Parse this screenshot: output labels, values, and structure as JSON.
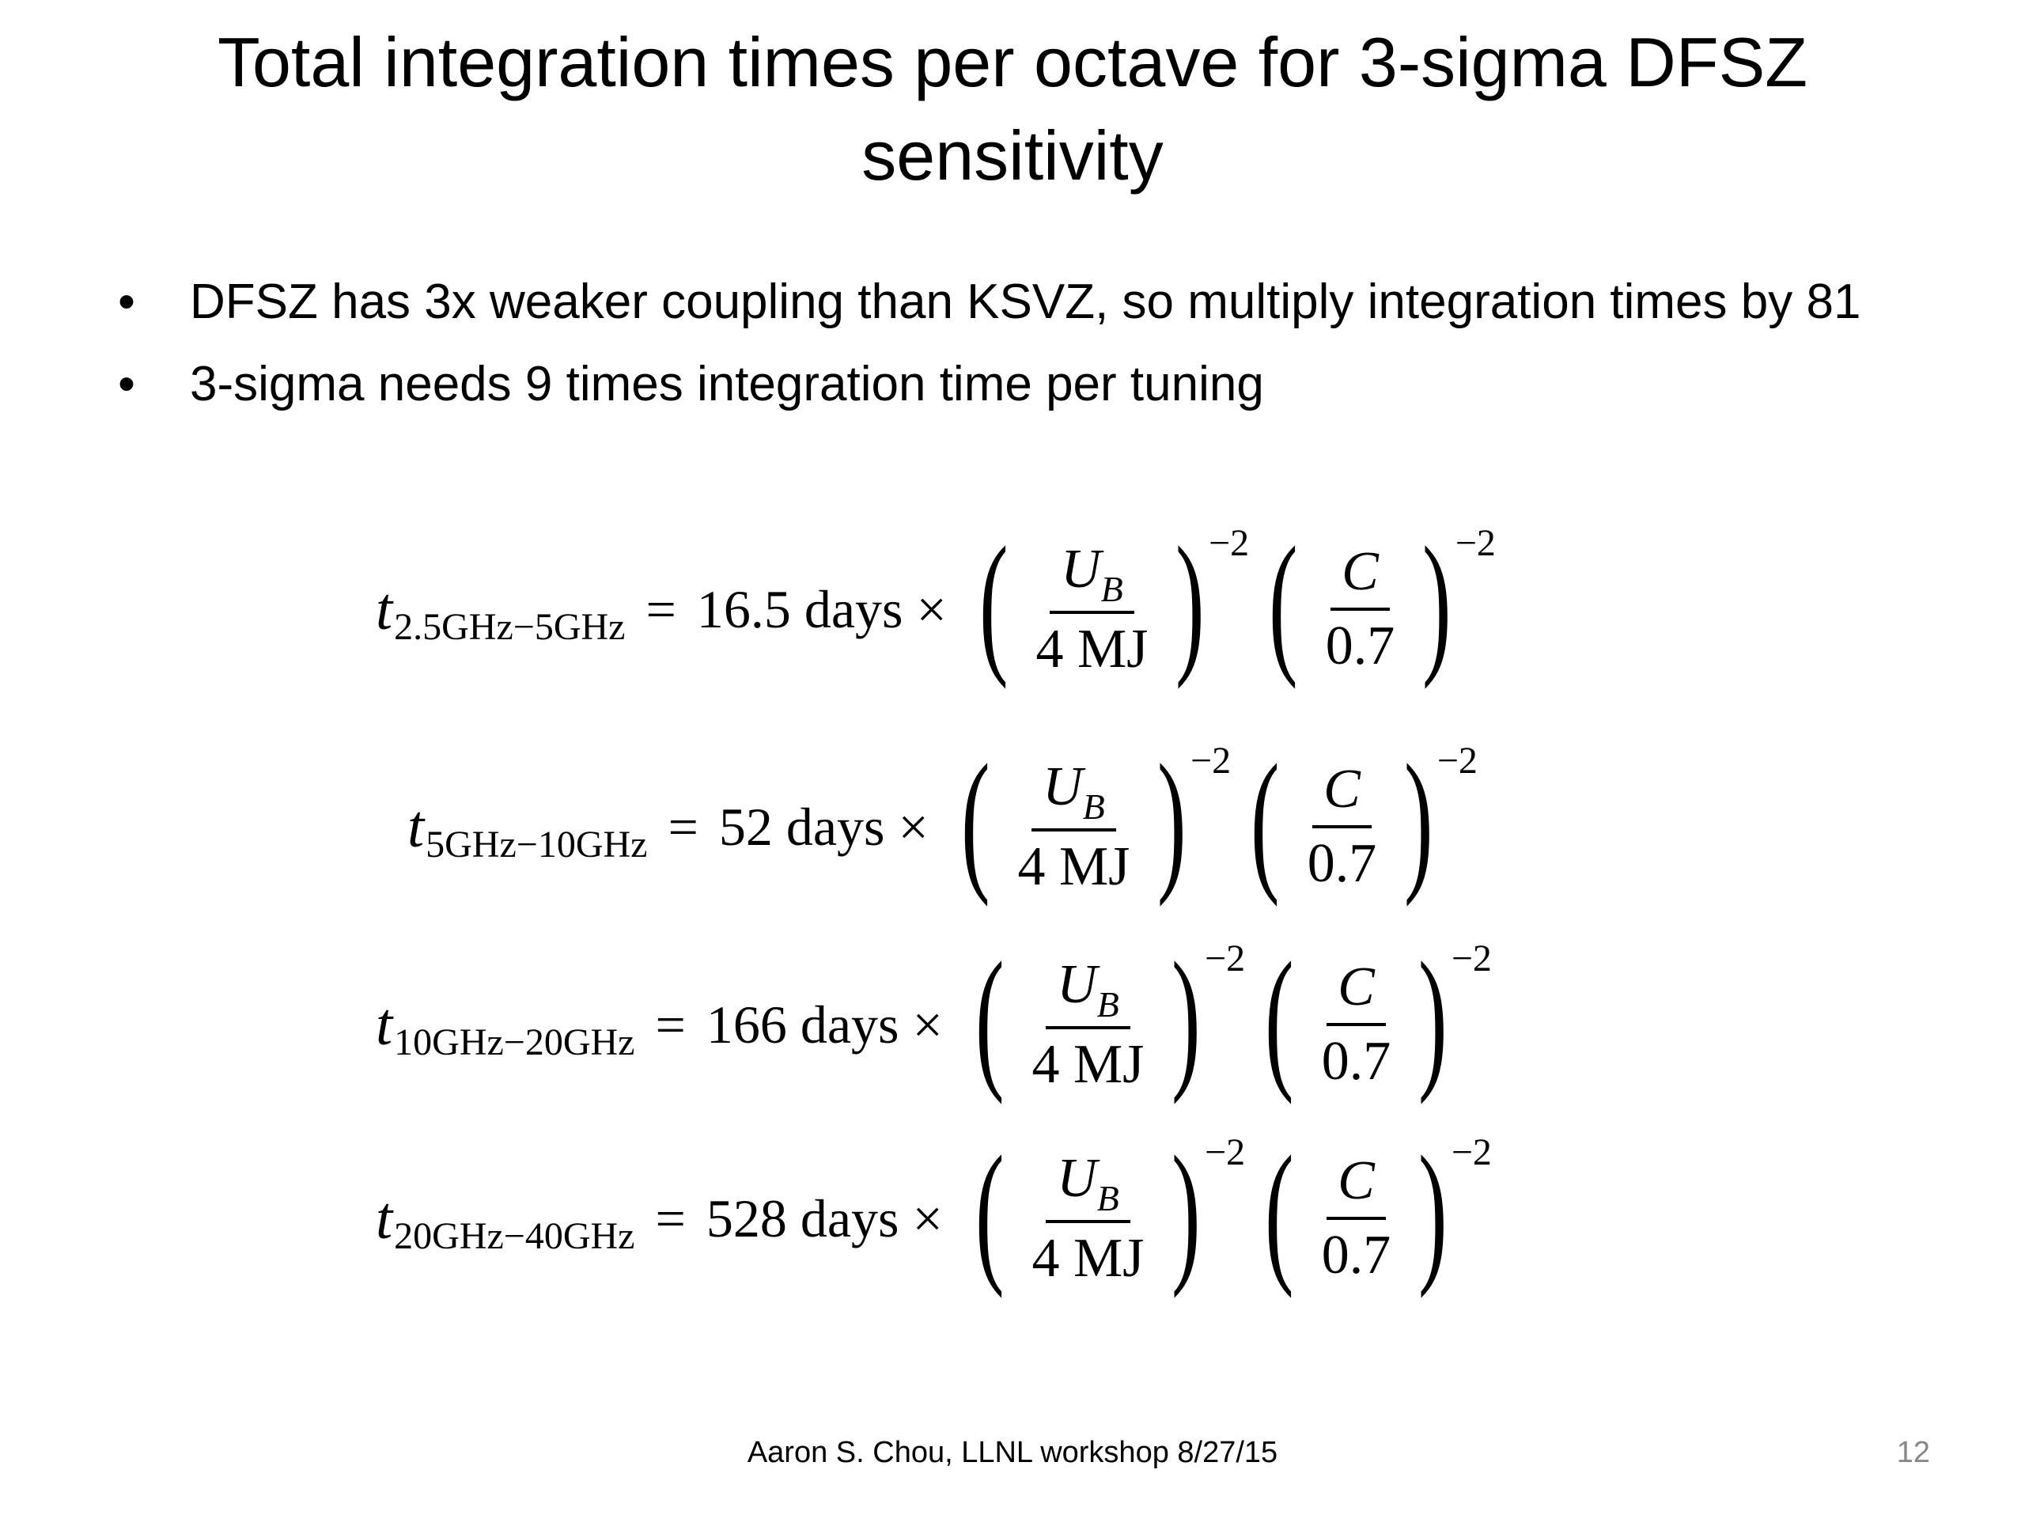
{
  "slide": {
    "title_line1": "Total integration times per octave for 3-sigma DFSZ",
    "title_line2": "sensitivity",
    "bullets": [
      "DFSZ has 3x weaker coupling than KSVZ, so multiply integration times by 81",
      "3-sigma needs 9 times integration time per tuning"
    ],
    "bullet_symbol": "•",
    "equations": [
      {
        "var": "t",
        "sub": "2.5GHz−5GHz",
        "eq": "=",
        "coef": "16.5 days ×"
      },
      {
        "var": "t",
        "sub": "5GHz−10GHz",
        "eq": "=",
        "coef": "52 days ×"
      },
      {
        "var": "t",
        "sub": "10GHz−20GHz",
        "eq": "=",
        "coef": "166 days ×"
      },
      {
        "var": "t",
        "sub": "20GHz−40GHz",
        "eq": "=",
        "coef": "528 days ×"
      }
    ],
    "factor1": {
      "num_var": "U",
      "num_sub": "B",
      "den": "4 MJ",
      "exp": "−2"
    },
    "factor2": {
      "num": "C",
      "den": "0.7",
      "exp": "−2"
    },
    "paren_left": "(",
    "paren_right": ")",
    "footer": "Aaron S. Chou, LLNL workshop 8/27/15",
    "page_number": "12"
  }
}
